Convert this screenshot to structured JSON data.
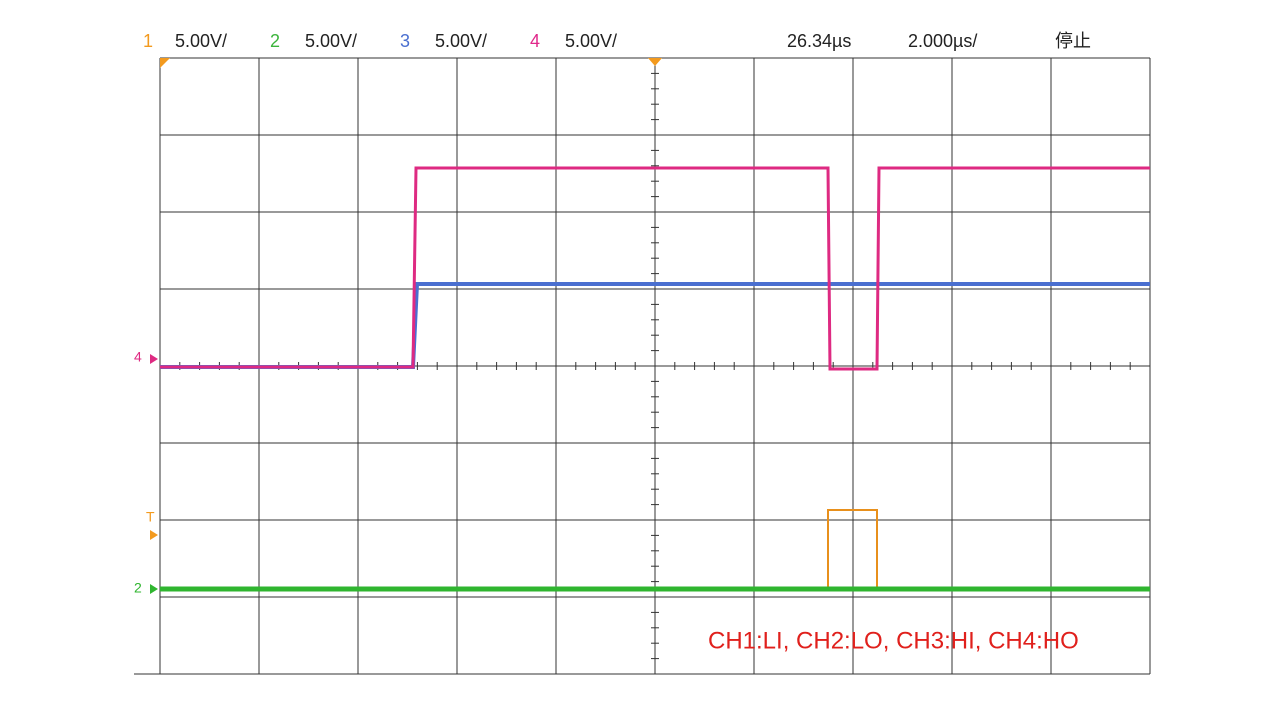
{
  "header": {
    "channels": [
      {
        "number": "1",
        "scale": "5.00V/"
      },
      {
        "number": "2",
        "scale": "5.00V/"
      },
      {
        "number": "3",
        "scale": "5.00V/"
      },
      {
        "number": "4",
        "scale": "5.00V/"
      }
    ],
    "time_position": "26.34µs",
    "time_scale": "2.000µs/",
    "status": "停止"
  },
  "markers": {
    "ch4": "4",
    "trigger": "T",
    "ch2": "2"
  },
  "annotation": "CH1:LI, CH2:LO, CH3:HI, CH4:HO"
}
